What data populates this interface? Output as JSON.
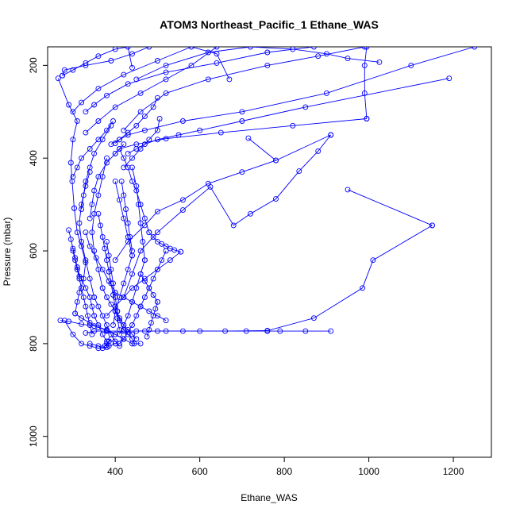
{
  "chart_data": {
    "type": "line",
    "title": "ATOM3 Northeast_Pacific_1 Ethane_WAS",
    "xlabel": "Ethane_WAS",
    "ylabel": "Pressure (mbar)",
    "xlim": [
      240,
      1290
    ],
    "ylim": [
      1045,
      160
    ],
    "y_reversed": true,
    "x_ticks": [
      400,
      600,
      800,
      1000,
      1200
    ],
    "y_ticks": [
      200,
      400,
      600,
      800,
      1000
    ],
    "grid": false,
    "legend": "none",
    "series_color": "#0000ff",
    "series": [
      {
        "x": [
          910,
          850,
          790,
          760,
          710,
          600,
          520,
          470,
          420,
          380,
          350,
          330
        ],
        "y": [
          773,
          773,
          773,
          773,
          773,
          773,
          773,
          773,
          773,
          773,
          773,
          777
        ]
      },
      {
        "x": [
          1150,
          950
        ],
        "y": [
          545,
          468
        ]
      },
      {
        "x": [
          1150,
          1010,
          985,
          870,
          760,
          660,
          560,
          500,
          450
        ],
        "y": [
          545,
          620,
          680,
          745,
          772,
          773,
          773,
          773,
          773
        ]
      },
      {
        "x": [
          910,
          880,
          835,
          780,
          720,
          680,
          625,
          560,
          500,
          460,
          440,
          420
        ],
        "y": [
          350,
          385,
          428,
          488,
          520,
          545,
          462,
          512,
          560,
          600,
          650,
          700
        ]
      },
      {
        "x": [
          910,
          780
        ],
        "y": [
          350,
          405
        ]
      },
      {
        "x": [
          715,
          780,
          700,
          620,
          560,
          500,
          470,
          430,
          400
        ],
        "y": [
          357,
          405,
          430,
          455,
          490,
          515,
          545,
          580,
          620
        ]
      },
      {
        "x": [
          1190,
          850,
          700,
          600,
          550,
          500,
          470,
          450,
          430
        ],
        "y": [
          228,
          290,
          320,
          340,
          350,
          360,
          370,
          380,
          390
        ]
      },
      {
        "x": [
          1250,
          1100,
          900,
          700,
          560,
          470,
          430,
          410,
          400
        ],
        "y": [
          160,
          200,
          260,
          300,
          320,
          340,
          350,
          360,
          368
        ]
      },
      {
        "x": [
          990,
          880,
          760,
          620,
          520,
          460,
          420
        ],
        "y": [
          160,
          180,
          200,
          230,
          260,
          300,
          340
        ]
      },
      {
        "x": [
          995,
          990,
          990,
          995
        ],
        "y": [
          160,
          200,
          260,
          315
        ]
      },
      {
        "x": [
          995,
          820,
          650,
          520,
          450,
          410,
          400
        ],
        "y": [
          315,
          330,
          345,
          358,
          370,
          380,
          390
        ]
      },
      {
        "x": [
          1025,
          950,
          900,
          820,
          720,
          620,
          520,
          450
        ],
        "y": [
          193,
          185,
          175,
          165,
          160,
          172,
          200,
          230
        ]
      },
      {
        "x": [
          870,
          760,
          640,
          520,
          430,
          380,
          350,
          330
        ],
        "y": [
          160,
          172,
          195,
          215,
          240,
          265,
          285,
          300
        ]
      },
      {
        "x": [
          670,
          640,
          580,
          500,
          420,
          360,
          320,
          300
        ],
        "y": [
          230,
          175,
          160,
          190,
          220,
          250,
          280,
          300
        ]
      },
      {
        "x": [
          640,
          580,
          520,
          460,
          400,
          360,
          330
        ],
        "y": [
          160,
          200,
          230,
          260,
          290,
          320,
          345
        ]
      },
      {
        "x": [
          480,
          440,
          390,
          330,
          280,
          275
        ],
        "y": [
          160,
          175,
          190,
          200,
          210,
          222
        ]
      },
      {
        "x": [
          275,
          300,
          330,
          360,
          400,
          430,
          440
        ],
        "y": [
          222,
          210,
          195,
          180,
          165,
          160,
          205
        ]
      },
      {
        "x": [
          265,
          290,
          310,
          300,
          295,
          298,
          303
        ],
        "y": [
          228,
          285,
          320,
          360,
          410,
          450,
          508
        ]
      },
      {
        "x": [
          303,
          310,
          320,
          330,
          325,
          315,
          310,
          305
        ],
        "y": [
          508,
          560,
          590,
          625,
          660,
          690,
          710,
          735
        ]
      },
      {
        "x": [
          305,
          320,
          340,
          360,
          380,
          400,
          420,
          440,
          460
        ],
        "y": [
          735,
          745,
          755,
          765,
          772,
          780,
          790,
          800,
          800
        ]
      },
      {
        "x": [
          270,
          290,
          320,
          350,
          380,
          400,
          420
        ],
        "y": [
          750,
          752,
          758,
          762,
          770,
          780,
          790
        ]
      },
      {
        "x": [
          280,
          300,
          320,
          340,
          360,
          380,
          400,
          420
        ],
        "y": [
          750,
          780,
          800,
          805,
          810,
          808,
          800,
          790
        ]
      },
      {
        "x": [
          340,
          360,
          370,
          375,
          380,
          385,
          390
        ],
        "y": [
          800,
          805,
          810,
          805,
          800,
          795,
          790
        ]
      },
      {
        "x": [
          395,
          380,
          360,
          340,
          320,
          310,
          300
        ],
        "y": [
          320,
          340,
          360,
          380,
          400,
          420,
          440
        ]
      },
      {
        "x": [
          390,
          370,
          350,
          340,
          330,
          325,
          320
        ],
        "y": [
          330,
          360,
          390,
          420,
          450,
          480,
          510
        ]
      },
      {
        "x": [
          420,
          400,
          380,
          360,
          350,
          345,
          340
        ],
        "y": [
          370,
          390,
          410,
          440,
          470,
          500,
          530
        ]
      },
      {
        "x": [
          410,
          420,
          430,
          440,
          450,
          460,
          470,
          480
        ],
        "y": [
          380,
          400,
          420,
          450,
          470,
          500,
          530,
          560
        ]
      },
      {
        "x": [
          480,
          490,
          500,
          510,
          520,
          530,
          540,
          555
        ],
        "y": [
          560,
          570,
          580,
          585,
          590,
          595,
          598,
          602
        ]
      },
      {
        "x": [
          555,
          530,
          500,
          470,
          440,
          420,
          400,
          380
        ],
        "y": [
          602,
          620,
          640,
          660,
          680,
          700,
          720,
          740
        ]
      },
      {
        "x": [
          380,
          370,
          360,
          350,
          345,
          350,
          360,
          370
        ],
        "y": [
          400,
          440,
          480,
          520,
          560,
          600,
          640,
          680
        ]
      },
      {
        "x": [
          370,
          380,
          390,
          400,
          410,
          420,
          430,
          440,
          450
        ],
        "y": [
          680,
          700,
          715,
          730,
          745,
          760,
          770,
          780,
          790
        ]
      },
      {
        "x": [
          340,
          330,
          320,
          315,
          320,
          330,
          340,
          350
        ],
        "y": [
          430,
          460,
          500,
          540,
          580,
          620,
          660,
          700
        ]
      },
      {
        "x": [
          350,
          360,
          370,
          380,
          390,
          400,
          410
        ],
        "y": [
          700,
          720,
          740,
          760,
          780,
          795,
          805
        ]
      },
      {
        "x": [
          440,
          450,
          455,
          460,
          465,
          470
        ],
        "y": [
          420,
          460,
          500,
          540,
          580,
          620
        ]
      },
      {
        "x": [
          470,
          460,
          450,
          440,
          430,
          420,
          410
        ],
        "y": [
          620,
          650,
          680,
          710,
          740,
          760,
          780
        ]
      },
      {
        "x": [
          400,
          410,
          420,
          430,
          440
        ],
        "y": [
          450,
          490,
          530,
          570,
          610
        ]
      },
      {
        "x": [
          440,
          430,
          420,
          410,
          400,
          395
        ],
        "y": [
          610,
          640,
          670,
          700,
          730,
          760
        ]
      },
      {
        "x": [
          330,
          340,
          355,
          370,
          385,
          400
        ],
        "y": [
          560,
          590,
          615,
          640,
          665,
          690
        ]
      },
      {
        "x": [
          400,
          420,
          440,
          460,
          480,
          500,
          520
        ],
        "y": [
          690,
          700,
          710,
          720,
          730,
          740,
          750
        ]
      },
      {
        "x": [
          520,
          510,
          500,
          490,
          480,
          470,
          460
        ],
        "y": [
          600,
          620,
          640,
          660,
          680,
          700,
          720
        ]
      },
      {
        "x": [
          460,
          450,
          440,
          430,
          420,
          410
        ],
        "y": [
          720,
          740,
          760,
          775,
          790,
          800
        ]
      },
      {
        "x": [
          500,
          490,
          470,
          450,
          430,
          410,
          390
        ],
        "y": [
          270,
          290,
          310,
          330,
          345,
          360,
          370
        ]
      },
      {
        "x": [
          505,
          500,
          480,
          460,
          440,
          420
        ],
        "y": [
          315,
          340,
          360,
          380,
          400,
          420
        ]
      },
      {
        "x": [
          380,
          385,
          390,
          395,
          400,
          405
        ],
        "y": [
          580,
          610,
          640,
          670,
          700,
          730
        ]
      },
      {
        "x": [
          405,
          410,
          420,
          430,
          440,
          445
        ],
        "y": [
          730,
          750,
          770,
          780,
          790,
          800
        ]
      },
      {
        "x": [
          310,
          320,
          330,
          340,
          345,
          350
        ],
        "y": [
          640,
          660,
          680,
          700,
          720,
          740
        ]
      },
      {
        "x": [
          350,
          360,
          370,
          380,
          385
        ],
        "y": [
          740,
          760,
          780,
          795,
          805
        ]
      },
      {
        "x": [
          300,
          305,
          310,
          315,
          320
        ],
        "y": [
          600,
          620,
          640,
          660,
          680
        ]
      },
      {
        "x": [
          320,
          325,
          330,
          335,
          340,
          345
        ],
        "y": [
          680,
          700,
          720,
          740,
          760,
          780
        ]
      },
      {
        "x": [
          290,
          295,
          300,
          305,
          310,
          315
        ],
        "y": [
          555,
          575,
          595,
          615,
          635,
          655
        ]
      },
      {
        "x": [
          460,
          470,
          480,
          490,
          500
        ],
        "y": [
          650,
          665,
          680,
          695,
          710
        ]
      },
      {
        "x": [
          500,
          495,
          490,
          485,
          480,
          475
        ],
        "y": [
          710,
          725,
          740,
          755,
          770,
          785
        ]
      },
      {
        "x": [
          415,
          420,
          425,
          430,
          435,
          440
        ],
        "y": [
          450,
          480,
          510,
          540,
          570,
          600
        ]
      },
      {
        "x": [
          360,
          365,
          370,
          375,
          380,
          385
        ],
        "y": [
          520,
          545,
          570,
          595,
          620,
          645
        ]
      },
      {
        "x": [
          385,
          390,
          395,
          400,
          405,
          410
        ],
        "y": [
          645,
          670,
          695,
          720,
          745,
          770
        ]
      }
    ]
  }
}
